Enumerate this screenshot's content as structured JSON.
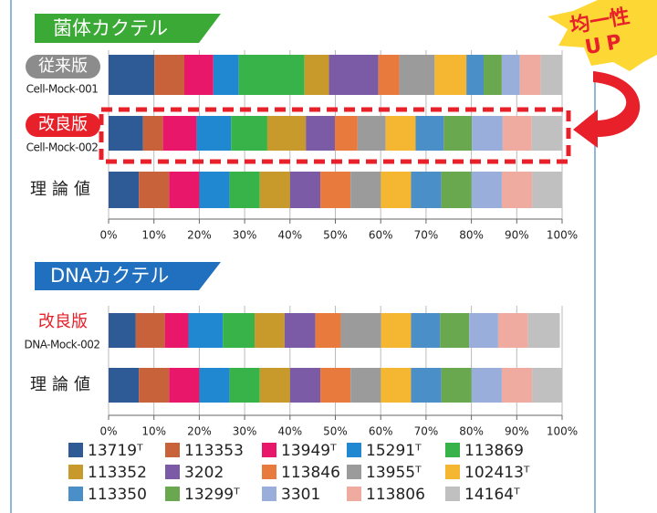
{
  "badge": {
    "lines": [
      "均一性",
      "UP"
    ]
  },
  "chart_data": [
    {
      "type": "stacked-bar-horizontal",
      "title": "菌体カクテル",
      "categories": [
        "従来版",
        "改良版",
        "理論値"
      ],
      "category_sublabels": [
        "Cell-Mock-001",
        "Cell-Mock-002",
        null
      ],
      "xlim": [
        0,
        100
      ],
      "xticks": [
        {
          "value": 0,
          "label": "0%"
        },
        {
          "value": 10,
          "label": "10%"
        },
        {
          "value": 20,
          "label": "20%"
        },
        {
          "value": 30,
          "label": "30%"
        },
        {
          "value": 40,
          "label": "40%"
        },
        {
          "value": 50,
          "label": "50%"
        },
        {
          "value": 60,
          "label": "60%"
        },
        {
          "value": 70,
          "label": "70%"
        },
        {
          "value": 80,
          "label": "80%"
        },
        {
          "value": 90,
          "label": "90%"
        },
        {
          "value": 100,
          "label": "100%"
        }
      ],
      "grid": true,
      "series": [
        {
          "color": "#2e5b95",
          "values": [
            10.1,
            7.6,
            6.67
          ]
        },
        {
          "color": "#c8623b",
          "values": [
            6.6,
            4.4,
            6.67
          ]
        },
        {
          "color": "#e8176a",
          "values": [
            6.4,
            7.4,
            6.67
          ]
        },
        {
          "color": "#1f88d0",
          "values": [
            5.6,
            7.6,
            6.67
          ]
        },
        {
          "color": "#37b34a",
          "values": [
            14.5,
            8.0,
            6.67
          ]
        },
        {
          "color": "#c89a2c",
          "values": [
            5.4,
            8.5,
            6.67
          ]
        },
        {
          "color": "#7b5aa6",
          "values": [
            10.9,
            6.4,
            6.67
          ]
        },
        {
          "color": "#e97a3e",
          "values": [
            4.6,
            5.0,
            6.67
          ]
        },
        {
          "color": "#9b9b9b",
          "values": [
            7.8,
            6.2,
            6.67
          ]
        },
        {
          "color": "#f5b731",
          "values": [
            7.0,
            6.6,
            6.67
          ]
        },
        {
          "color": "#4a8fc7",
          "values": [
            3.8,
            6.2,
            6.67
          ]
        },
        {
          "color": "#6aa84f",
          "values": [
            4.0,
            6.2,
            6.67
          ]
        },
        {
          "color": "#9aaedb",
          "values": [
            4.0,
            6.8,
            6.67
          ]
        },
        {
          "color": "#efaba0",
          "values": [
            4.6,
            6.4,
            6.67
          ]
        },
        {
          "color": "#c0c0c0",
          "values": [
            4.7,
            6.7,
            6.67
          ]
        }
      ]
    },
    {
      "type": "stacked-bar-horizontal",
      "title": "DNAカクテル",
      "categories": [
        "改良版",
        "理論値"
      ],
      "category_sublabels": [
        "DNA-Mock-002",
        null
      ],
      "xlim": [
        0,
        100
      ],
      "xticks": [
        {
          "value": 0,
          "label": "0%"
        },
        {
          "value": 10,
          "label": "10%"
        },
        {
          "value": 20,
          "label": "20%"
        },
        {
          "value": 30,
          "label": "30%"
        },
        {
          "value": 40,
          "label": "40%"
        },
        {
          "value": 50,
          "label": "50%"
        },
        {
          "value": 60,
          "label": "60%"
        },
        {
          "value": 70,
          "label": "70%"
        },
        {
          "value": 80,
          "label": "80%"
        },
        {
          "value": 90,
          "label": "90%"
        },
        {
          "value": 100,
          "label": "100%"
        }
      ],
      "grid": true,
      "series": [
        {
          "name": "13719ᵀ",
          "color": "#2e5b95",
          "values": [
            6.0,
            6.67
          ]
        },
        {
          "name": "113353",
          "color": "#c8623b",
          "values": [
            6.4,
            6.67
          ]
        },
        {
          "name": "13949ᵀ",
          "color": "#e8176a",
          "values": [
            5.2,
            6.67
          ]
        },
        {
          "name": "15291ᵀ",
          "color": "#1f88d0",
          "values": [
            7.6,
            6.67
          ]
        },
        {
          "name": "113869",
          "color": "#37b34a",
          "values": [
            7.0,
            6.67
          ]
        },
        {
          "name": "113352",
          "color": "#c89a2c",
          "values": [
            6.6,
            6.67
          ]
        },
        {
          "name": "3202",
          "color": "#7b5aa6",
          "values": [
            6.8,
            6.67
          ]
        },
        {
          "name": "113846",
          "color": "#e97a3e",
          "values": [
            5.6,
            6.67
          ]
        },
        {
          "name": "13955ᵀ",
          "color": "#9b9b9b",
          "values": [
            8.9,
            6.67
          ]
        },
        {
          "name": "102413ᵀ",
          "color": "#f5b731",
          "values": [
            6.6,
            6.67
          ]
        },
        {
          "name": "113350",
          "color": "#4a8fc7",
          "values": [
            6.4,
            6.67
          ]
        },
        {
          "name": "13299ᵀ",
          "color": "#6aa84f",
          "values": [
            6.4,
            6.67
          ]
        },
        {
          "name": "3301",
          "color": "#9aaedb",
          "values": [
            6.4,
            6.67
          ]
        },
        {
          "name": "113806",
          "color": "#efaba0",
          "values": [
            6.6,
            6.67
          ]
        },
        {
          "name": "14164ᵀ",
          "color": "#c0c0c0",
          "values": [
            7.0,
            6.67
          ]
        }
      ]
    }
  ]
}
